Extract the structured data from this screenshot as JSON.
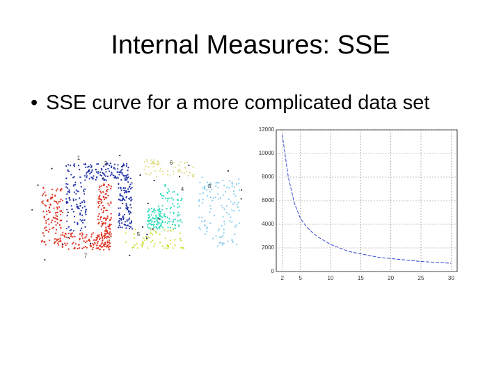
{
  "slide": {
    "title": "Internal Measures: SSE",
    "bullet": "SSE curve for a more complicated data set"
  },
  "figure": {
    "cluster_labels": [
      "1",
      "2",
      "6",
      "4",
      "3",
      "5",
      "7"
    ]
  },
  "chart_data": {
    "type": "line",
    "x": [
      2,
      3,
      4,
      5,
      6,
      7,
      8,
      9,
      10,
      11,
      12,
      13,
      14,
      15,
      16,
      17,
      18,
      19,
      20,
      21,
      22,
      23,
      24,
      25,
      26,
      27,
      28,
      29,
      30
    ],
    "series": [
      {
        "color": "#3344cc",
        "values": [
          11600,
          8000,
          5800,
          4500,
          3800,
          3300,
          2900,
          2600,
          2300,
          2100,
          1900,
          1700,
          1600,
          1500,
          1400,
          1300,
          1200,
          1150,
          1100,
          1050,
          1000,
          950,
          900,
          850,
          820,
          790,
          760,
          730,
          700
        ]
      }
    ],
    "xlim": [
      1,
      31
    ],
    "ylim": [
      0,
      12000
    ],
    "xticks": [
      2,
      5,
      10,
      15,
      20,
      25,
      30
    ],
    "yticks": [
      0,
      2000,
      4000,
      6000,
      8000,
      10000,
      12000
    ],
    "grid": true
  }
}
